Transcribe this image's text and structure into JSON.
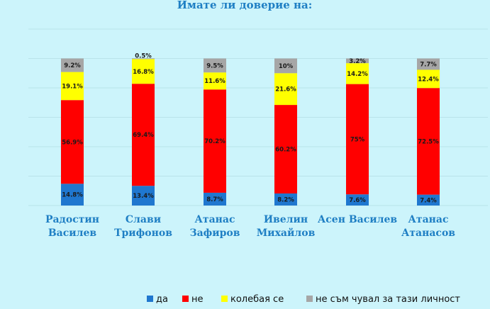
{
  "chart_data": {
    "type": "bar",
    "stacked": true,
    "title": "Имате  ли доверие на:",
    "categories": [
      [
        "Радостин",
        "Василев"
      ],
      [
        "Слави",
        "Трифонов"
      ],
      [
        "Атанас",
        "Зафиров"
      ],
      [
        "Ивелин",
        "Михайлов"
      ],
      [
        "Асен Василев"
      ],
      [
        "Атанас",
        "Атанасов"
      ]
    ],
    "series": [
      {
        "name": "да",
        "color": "#1f77cf",
        "values": [
          14.8,
          13.4,
          8.7,
          8.2,
          7.6,
          7.4
        ],
        "labels": [
          "14.8%",
          "13.4%",
          "8.7%",
          "8.2%",
          "7.6%",
          "7.4%"
        ]
      },
      {
        "name": "не",
        "color": "#ff0000",
        "values": [
          56.9,
          69.4,
          70.2,
          60.2,
          75,
          72.5
        ],
        "labels": [
          "56.9%",
          "69.4%",
          "70.2%",
          "60.2%",
          "75%",
          "72.5%"
        ]
      },
      {
        "name": "колебая се",
        "color": "#ffff00",
        "values": [
          19.1,
          16.8,
          11.6,
          21.6,
          14.2,
          12.4
        ],
        "labels": [
          "19.1%",
          "16.8%",
          "11.6%",
          "21.6%",
          "14.2%",
          "12.4%"
        ]
      },
      {
        "name": "не съм чувал за тази личност",
        "color": "#a6a6a6",
        "values": [
          9.2,
          0.5,
          9.5,
          10,
          3.2,
          7.7
        ],
        "labels": [
          "9.2%",
          "0.5%",
          "9.5%",
          "10%",
          "3.2%",
          "7.7%"
        ]
      }
    ],
    "ylim": [
      0,
      120
    ],
    "grid": true,
    "legend_position": "bottom"
  }
}
